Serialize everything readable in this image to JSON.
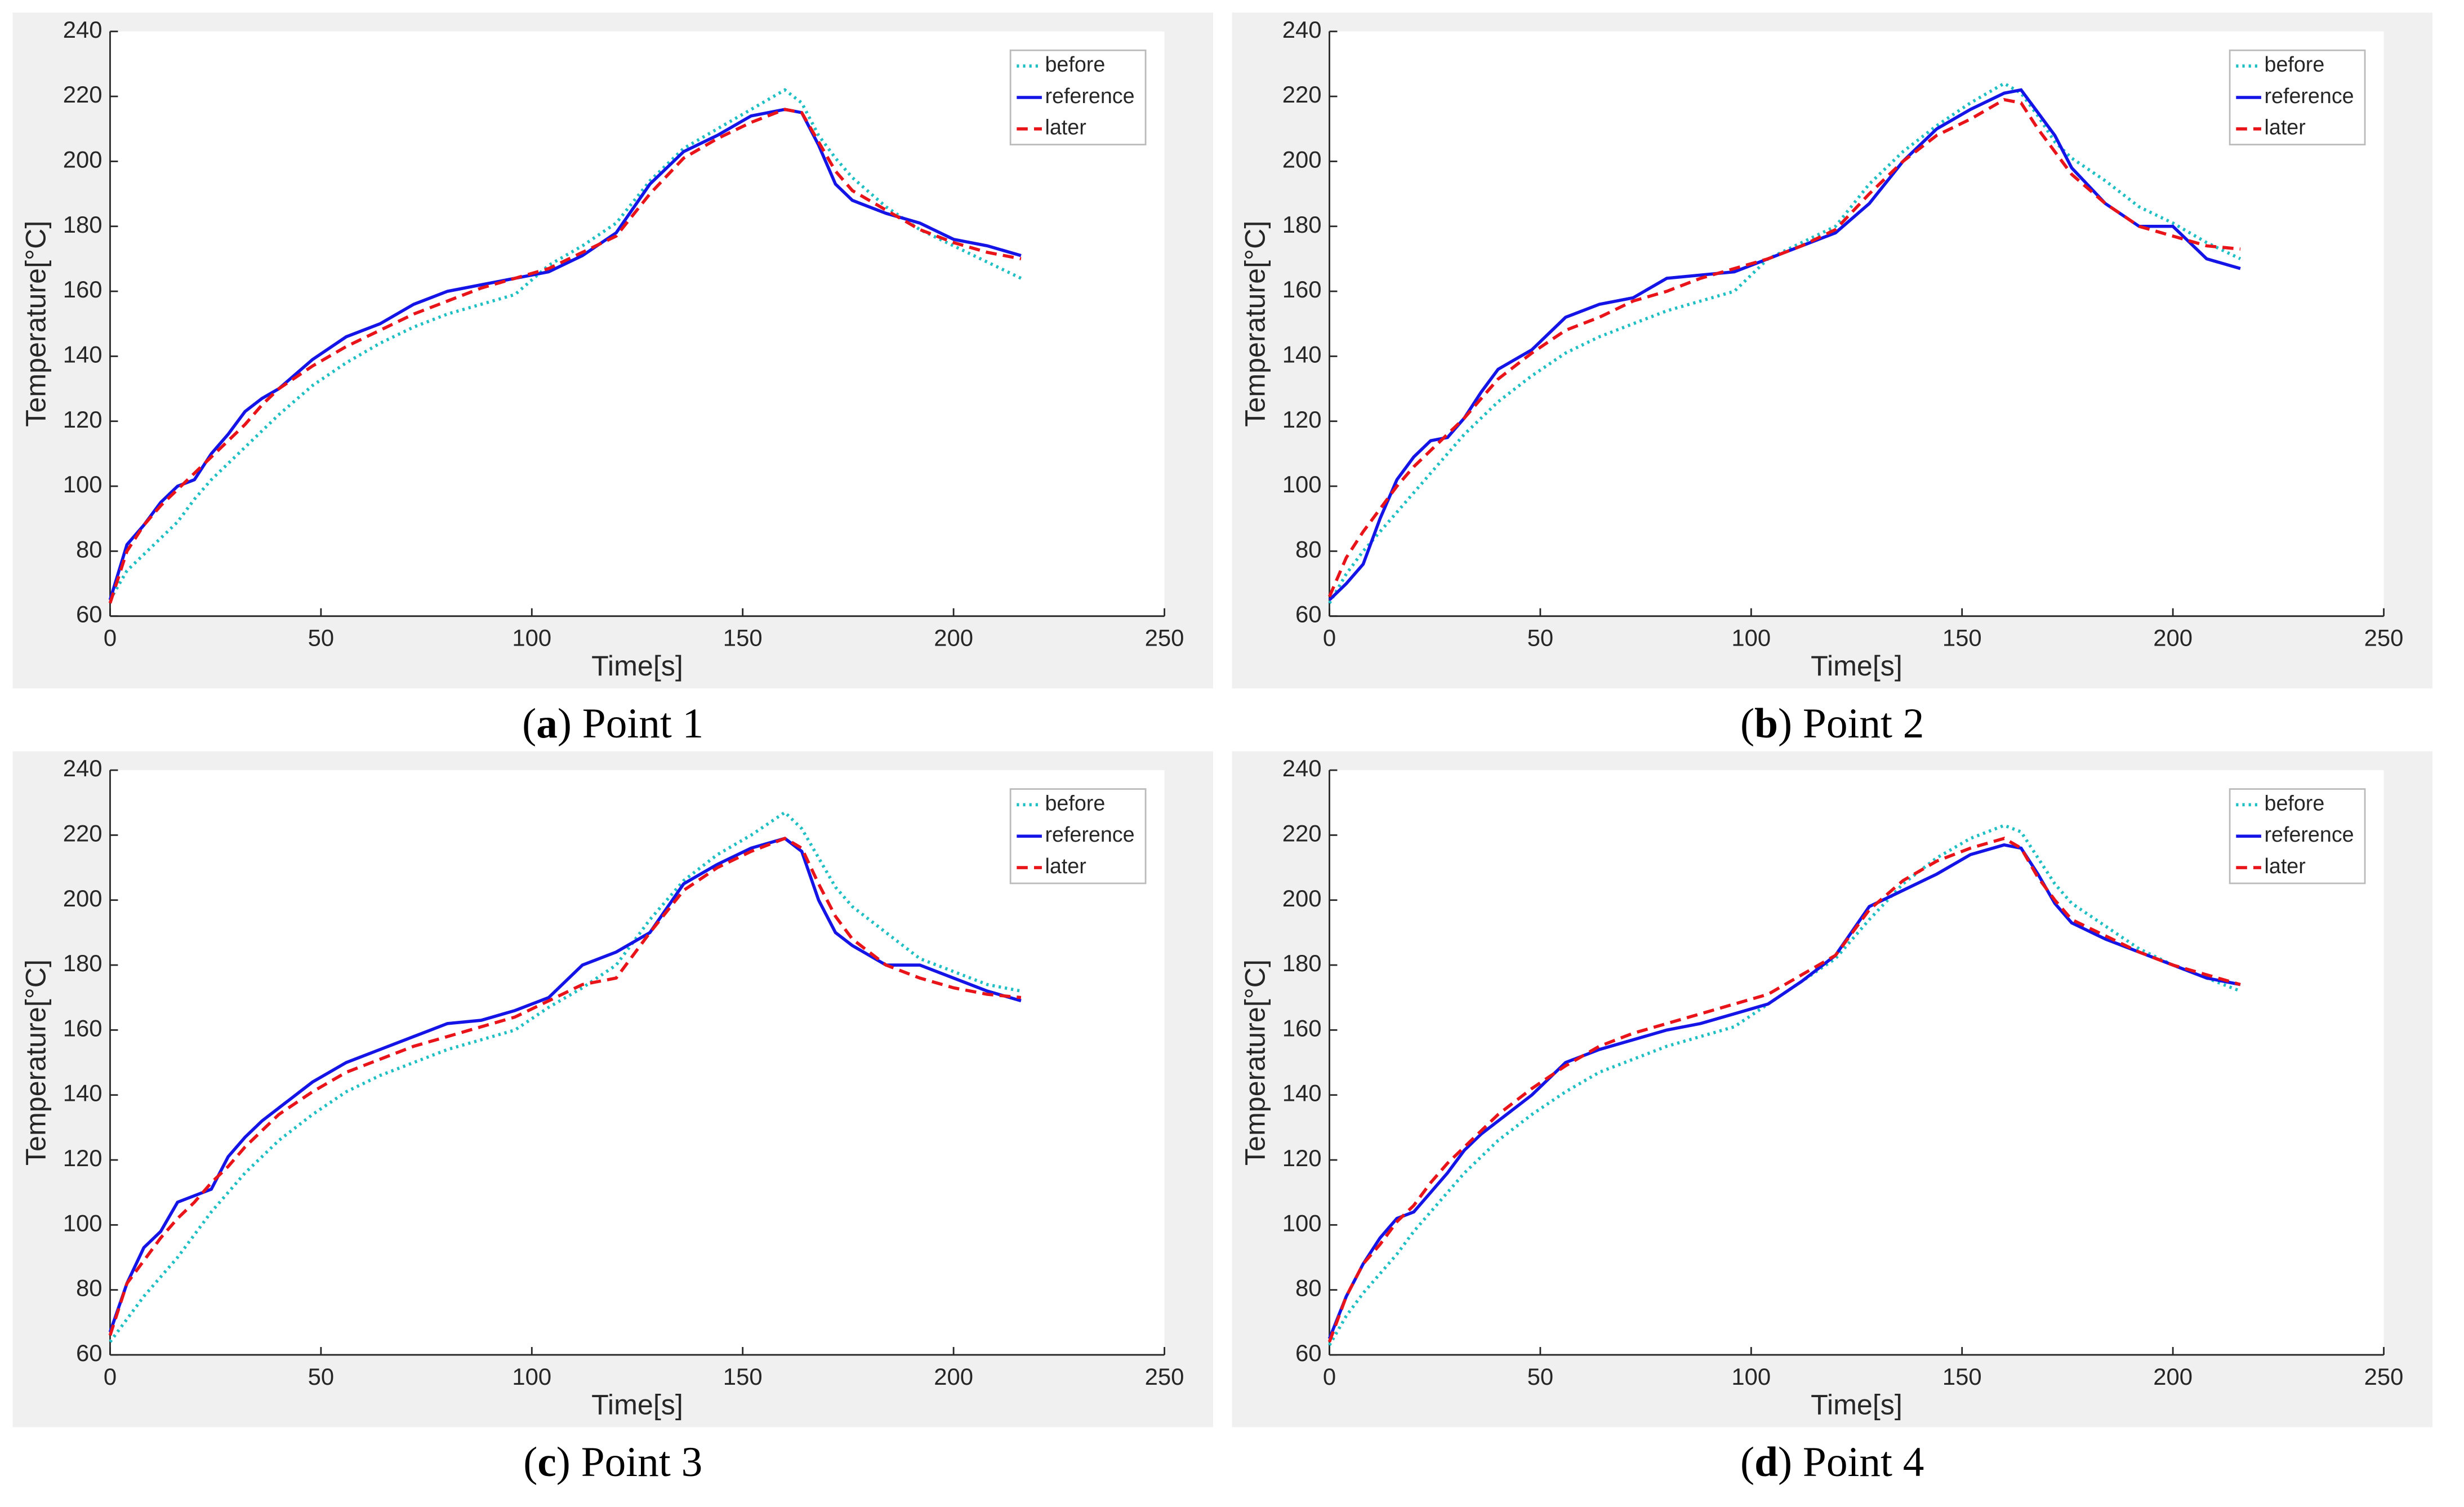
{
  "chart_data": [
    {
      "type": "line",
      "caption": [
        "(",
        "a",
        ") Point 1"
      ],
      "xlabel": "Time[s]",
      "ylabel": "Temperature[°C]",
      "legend": "upper right",
      "grid": false,
      "x": [
        0,
        4,
        8,
        12,
        16,
        20,
        24,
        28,
        32,
        36,
        40,
        48,
        56,
        64,
        72,
        80,
        88,
        96,
        104,
        112,
        120,
        128,
        136,
        144,
        152,
        160,
        164,
        168,
        172,
        176,
        184,
        192,
        200,
        208,
        216
      ],
      "xlim": [
        0,
        250
      ],
      "xticks": [
        0,
        50,
        100,
        150,
        200,
        250
      ],
      "ylim": [
        60,
        240
      ],
      "yticks": [
        60,
        80,
        100,
        120,
        140,
        160,
        180,
        200,
        220,
        240
      ],
      "series": [
        {
          "name": "before",
          "color": "#1fbfc4",
          "style": "dotted",
          "values": [
            65,
            74,
            79,
            84,
            89,
            96,
            102,
            107,
            112,
            117,
            122,
            131,
            138,
            144,
            149,
            153,
            156,
            159,
            168,
            174,
            181,
            194,
            204,
            210,
            216,
            222,
            218,
            208,
            201,
            195,
            186,
            179,
            174,
            169,
            164
          ]
        },
        {
          "name": "reference",
          "color": "#1414e6",
          "style": "solid",
          "values": [
            65,
            82,
            88,
            95,
            100,
            102,
            110,
            116,
            123,
            127,
            130,
            139,
            146,
            150,
            156,
            160,
            162,
            164,
            166,
            171,
            178,
            193,
            203,
            208,
            214,
            216,
            215,
            205,
            193,
            188,
            184,
            181,
            176,
            174,
            171
          ]
        },
        {
          "name": "later",
          "color": "#e8141a",
          "style": "dashed",
          "values": [
            64,
            80,
            88,
            94,
            99,
            104,
            109,
            114,
            119,
            125,
            130,
            137,
            143,
            148,
            153,
            157,
            161,
            164,
            167,
            172,
            177,
            190,
            201,
            207,
            212,
            216,
            215,
            206,
            197,
            191,
            185,
            179,
            175,
            172,
            170
          ]
        }
      ]
    },
    {
      "type": "line",
      "caption": [
        "(",
        "b",
        ") Point 2"
      ],
      "xlabel": "Time[s]",
      "ylabel": "Temperature[°C]",
      "legend": "upper right",
      "grid": false,
      "x": [
        0,
        4,
        8,
        12,
        16,
        20,
        24,
        28,
        32,
        36,
        40,
        48,
        56,
        64,
        72,
        80,
        88,
        96,
        104,
        112,
        120,
        128,
        136,
        144,
        152,
        160,
        164,
        168,
        172,
        176,
        184,
        192,
        200,
        208,
        216
      ],
      "xlim": [
        0,
        250
      ],
      "xticks": [
        0,
        50,
        100,
        150,
        200,
        250
      ],
      "ylim": [
        60,
        240
      ],
      "yticks": [
        60,
        80,
        100,
        120,
        140,
        160,
        180,
        200,
        220,
        240
      ],
      "series": [
        {
          "name": "before",
          "color": "#1fbfc4",
          "style": "dotted",
          "values": [
            64,
            73,
            80,
            86,
            92,
            98,
            104,
            110,
            116,
            121,
            126,
            134,
            141,
            146,
            150,
            154,
            157,
            160,
            170,
            175,
            180,
            193,
            203,
            211,
            218,
            224,
            221,
            214,
            206,
            201,
            194,
            186,
            181,
            175,
            170
          ]
        },
        {
          "name": "reference",
          "color": "#1414e6",
          "style": "solid",
          "values": [
            65,
            70,
            76,
            90,
            102,
            109,
            114,
            115,
            121,
            129,
            136,
            142,
            152,
            156,
            158,
            164,
            165,
            166,
            170,
            174,
            178,
            187,
            200,
            210,
            216,
            221,
            222,
            215,
            208,
            198,
            187,
            180,
            180,
            170,
            167
          ]
        },
        {
          "name": "later",
          "color": "#e8141a",
          "style": "dashed",
          "values": [
            66,
            78,
            86,
            93,
            100,
            106,
            111,
            116,
            121,
            127,
            133,
            141,
            148,
            152,
            157,
            160,
            164,
            167,
            170,
            174,
            179,
            190,
            200,
            208,
            213,
            219,
            218,
            210,
            203,
            196,
            187,
            180,
            177,
            174,
            173
          ]
        }
      ]
    },
    {
      "type": "line",
      "caption": [
        "(",
        "c",
        ") Point 3"
      ],
      "xlabel": "Time[s]",
      "ylabel": "Temperature[°C]",
      "legend": "upper right",
      "grid": false,
      "x": [
        0,
        4,
        8,
        12,
        16,
        20,
        24,
        28,
        32,
        36,
        40,
        48,
        56,
        64,
        72,
        80,
        88,
        96,
        104,
        112,
        120,
        128,
        136,
        144,
        152,
        160,
        164,
        168,
        172,
        176,
        184,
        192,
        200,
        208,
        216
      ],
      "xlim": [
        0,
        250
      ],
      "xticks": [
        0,
        50,
        100,
        150,
        200,
        250
      ],
      "ylim": [
        60,
        240
      ],
      "yticks": [
        60,
        80,
        100,
        120,
        140,
        160,
        180,
        200,
        220,
        240
      ],
      "series": [
        {
          "name": "before",
          "color": "#1fbfc4",
          "style": "dotted",
          "values": [
            64,
            71,
            78,
            84,
            90,
            97,
            104,
            110,
            116,
            121,
            126,
            134,
            141,
            146,
            150,
            154,
            157,
            160,
            167,
            173,
            180,
            194,
            206,
            214,
            220,
            227,
            222,
            213,
            204,
            198,
            190,
            182,
            178,
            174,
            172
          ]
        },
        {
          "name": "reference",
          "color": "#1414e6",
          "style": "solid",
          "values": [
            67,
            82,
            93,
            98,
            107,
            109,
            111,
            121,
            127,
            132,
            136,
            144,
            150,
            154,
            158,
            162,
            163,
            166,
            170,
            180,
            184,
            190,
            205,
            211,
            216,
            219,
            215,
            200,
            190,
            186,
            180,
            180,
            176,
            172,
            169
          ]
        },
        {
          "name": "later",
          "color": "#e8141a",
          "style": "dashed",
          "values": [
            66,
            82,
            89,
            96,
            102,
            107,
            113,
            118,
            124,
            129,
            134,
            141,
            147,
            151,
            155,
            158,
            161,
            164,
            169,
            174,
            176,
            190,
            203,
            210,
            215,
            219,
            216,
            205,
            195,
            188,
            180,
            176,
            173,
            171,
            170
          ]
        }
      ]
    },
    {
      "type": "line",
      "caption": [
        "(",
        "d",
        ") Point 4"
      ],
      "xlabel": "Time[s]",
      "ylabel": "Temperature[°C]",
      "legend": "upper right",
      "grid": false,
      "x": [
        0,
        4,
        8,
        12,
        16,
        20,
        24,
        28,
        32,
        36,
        40,
        48,
        56,
        64,
        72,
        80,
        88,
        96,
        104,
        112,
        120,
        128,
        136,
        144,
        152,
        160,
        164,
        168,
        172,
        176,
        184,
        192,
        200,
        208,
        216
      ],
      "xlim": [
        0,
        250
      ],
      "xticks": [
        0,
        50,
        100,
        150,
        200,
        250
      ],
      "ylim": [
        60,
        240
      ],
      "yticks": [
        60,
        80,
        100,
        120,
        140,
        160,
        180,
        200,
        220,
        240
      ],
      "series": [
        {
          "name": "before",
          "color": "#1fbfc4",
          "style": "dotted",
          "values": [
            63,
            72,
            79,
            85,
            91,
            98,
            104,
            110,
            116,
            121,
            126,
            134,
            141,
            147,
            151,
            155,
            158,
            161,
            168,
            175,
            182,
            194,
            205,
            213,
            219,
            223,
            221,
            213,
            205,
            199,
            192,
            185,
            180,
            176,
            172
          ]
        },
        {
          "name": "reference",
          "color": "#1414e6",
          "style": "solid",
          "values": [
            65,
            78,
            88,
            96,
            102,
            104,
            110,
            116,
            123,
            128,
            132,
            140,
            150,
            154,
            157,
            160,
            162,
            165,
            168,
            175,
            183,
            198,
            203,
            208,
            214,
            217,
            216,
            208,
            199,
            193,
            188,
            184,
            180,
            176,
            174
          ]
        },
        {
          "name": "later",
          "color": "#e8141a",
          "style": "dashed",
          "values": [
            64,
            78,
            88,
            94,
            101,
            106,
            113,
            119,
            124,
            129,
            134,
            142,
            149,
            155,
            159,
            162,
            165,
            168,
            171,
            177,
            183,
            197,
            206,
            212,
            216,
            219,
            216,
            207,
            200,
            194,
            189,
            184,
            180,
            177,
            174
          ]
        }
      ]
    }
  ]
}
